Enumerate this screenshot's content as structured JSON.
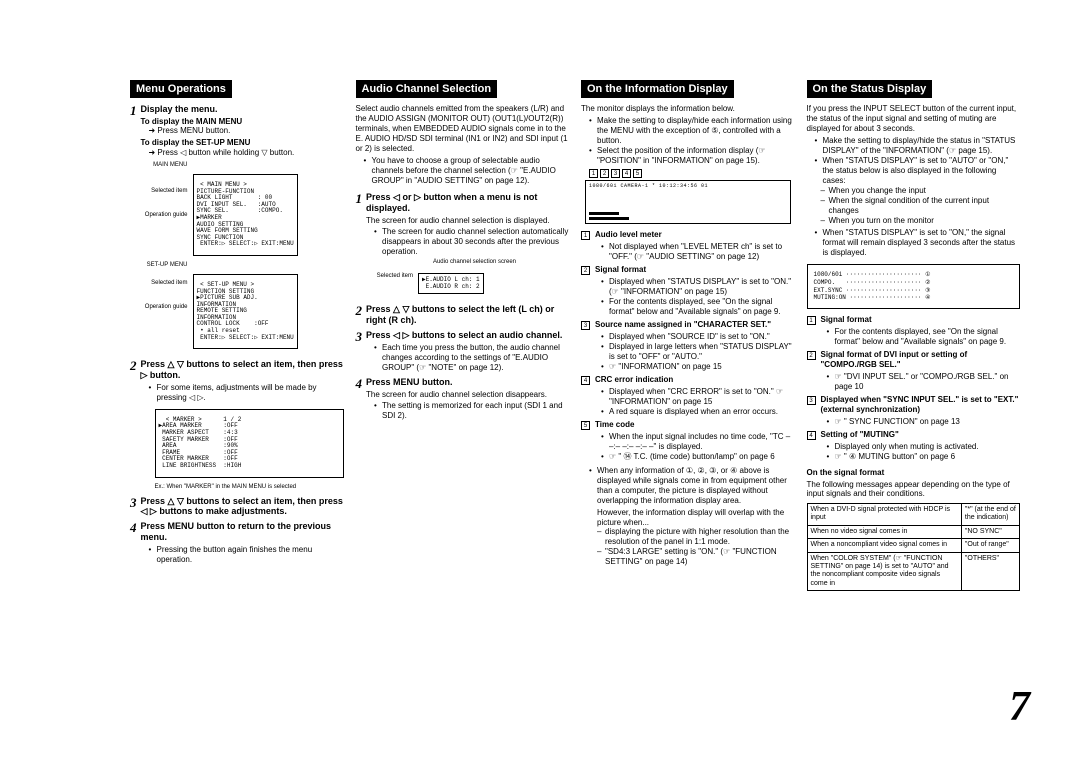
{
  "page_number": "7",
  "col1": {
    "header": "Menu Operations",
    "step1": {
      "title": "Display the menu.",
      "line1": "To display the MAIN MENU",
      "line1b": "➜ Press MENU button.",
      "line2": "To display the SET-UP MENU",
      "line2b": "➜ Press ◁ button while holding ▽ button.",
      "diag_main_label": "MAIN MENU",
      "diag_main": " < MAIN MENU >\nPICTURE-FUNCTION\nBACK LIGHT       : 00\nDVI INPUT SEL.   :AUTO\nSYNC SEL.        :COMPO.\n▶MARKER\nAUDIO SETTING\nWAVE FORM SETTING\nSYNC FUNCTION\n ENTER:▷ SELECT:▷ EXIT:MENU",
      "diag_setup_label": "SET-UP MENU",
      "diag_setup": " < SET-UP MENU >\nFUNCTION SETTING\n▶PICTURE SUB ADJ.\nINFORMATION\nREMOTE SETTING\nINFORMATION\nCONTROL LOCK    :OFF\n • all reset\n ENTER:▷ SELECT:▷ EXIT:MENU",
      "sel_label": "Selected item",
      "op_label": "Operation guide"
    },
    "step2": {
      "title": "Press △ ▽ buttons to select an item, then press ▷ button.",
      "bullet": "For some items, adjustments will be made by pressing ◁ ▷.",
      "diag": "  < MARKER >      1 / 2\n▶AREA MARKER      :OFF\n MARKER ASPECT    :4:3\n SAFETY MARKER    :OFF\n AREA             :90%\n FRAME            :OFF\n CENTER MARKER    :OFF\n LINE BRIGHTNESS  :HIGH",
      "caption": "Ex.: When \"MARKER\" in the MAIN MENU is selected"
    },
    "step3": {
      "title": "Press △ ▽ buttons to select an item, then press ◁ ▷ buttons to make adjustments."
    },
    "step4": {
      "title": "Press MENU button to return to the previous menu.",
      "bullet": "Pressing the button again finishes the menu operation."
    }
  },
  "col2": {
    "header": "Audio Channel Selection",
    "intro": "Select audio channels emitted from the speakers (L/R) and the AUDIO ASSIGN (MONITOR OUT) (OUT1(L)/OUT2(R)) terminals, when EMBEDDED AUDIO signals come in to the E. AUDIO HD/SD SDI terminal (IN1 or IN2) and SDI input (1 or 2) is selected.",
    "intro_b": "You have to choose a group of selectable audio channels before the channel selection (☞ \"E.AUDIO GROUP\" in \"AUDIO SETTING\" on page 12).",
    "step1": {
      "title": "Press ◁ or ▷ button when a menu is not displayed.",
      "sub": "The screen for audio channel selection is displayed.",
      "bullet": "The screen for audio channel selection automatically disappears in about 30 seconds after the previous operation.",
      "diag_caption": "Audio channel selection screen",
      "diag_label": "Selected item",
      "diag": "▶E.AUDIO L ch: 1\n E.AUDIO R ch: 2"
    },
    "step2": {
      "title": "Press △ ▽ buttons to select the left (L ch) or right (R ch)."
    },
    "step3": {
      "title": "Press ◁ ▷ buttons to select an audio channel.",
      "bullet": "Each time you press the button, the audio channel changes according to the settings of \"E.AUDIO GROUP\" (☞ \"NOTE\" on page 12)."
    },
    "step4": {
      "title": "Press MENU button.",
      "sub": "The screen for audio channel selection disappears.",
      "bullet": "The setting is memorized for each input (SDI 1 and SDI 2)."
    }
  },
  "col3": {
    "header": "On the Information Display",
    "intro": "The monitor displays the information below.",
    "b1": "Make the setting to display/hide each information using the MENU with the exception of ⑤, controlled with a button.",
    "b2": "Select the position of the information display (☞ \"POSITION\" in \"INFORMATION\" on page 15).",
    "diag_top": "① ② ③ ④ ⑤ ↓",
    "diag_line": "1080/60i  CAMERA-1  *  10:12:34:56 01",
    "items": [
      {
        "n": "1",
        "t": "Audio level meter",
        "sub": [
          "Not displayed when \"LEVEL METER ch\" is set to \"OFF.\" (☞ \"AUDIO SETTING\" on page 12)"
        ]
      },
      {
        "n": "2",
        "t": "Signal format",
        "sub": [
          "Displayed when \"STATUS DISPLAY\" is set to \"ON.\" (☞ \"INFORMATION\" on page 15)",
          "For the contents displayed, see \"On the signal format\" below and \"Available signals\" on page 9."
        ]
      },
      {
        "n": "3",
        "t": "Source name assigned in \"CHARACTER SET.\"",
        "sub": [
          "Displayed when \"SOURCE ID\" is set to \"ON.\"",
          "Displayed in large letters when \"STATUS DISPLAY\" is set to \"OFF\" or \"AUTO.\"",
          "☞ \"INFORMATION\" on page 15"
        ]
      },
      {
        "n": "4",
        "t": "CRC error indication",
        "sub": [
          "Displayed when \"CRC ERROR\" is set to \"ON.\" ☞ \"INFORMATION\" on page 15",
          "A red square is displayed when an error occurs."
        ]
      },
      {
        "n": "5",
        "t": "Time code",
        "sub": [
          "When the input signal includes no time code, \"TC – –:– –:– –:– –\" is displayed.",
          "☞ \" ⑭ T.C. (time code) button/lamp\" on page 6"
        ]
      }
    ],
    "tail1": "When any information of ①, ②, ③, or ④ above is displayed while signals come in from equipment other than a computer, the picture is displayed without overlapping the information display area.",
    "tail2": "However, the information display will overlap with the picture when...",
    "tail_d1": "displaying the picture with higher resolution than the resolution of the panel in 1:1 mode.",
    "tail_d2": "\"SD4:3 LARGE\" setting is \"ON.\" (☞ \"FUNCTION SETTING\" on page 14)"
  },
  "col4": {
    "header": "On the Status Display",
    "intro": "If you press the INPUT SELECT button of the current input, the status of the input signal and setting of muting are displayed for about 3 seconds.",
    "b1": "Make the setting to display/hide the status in \"STATUS DISPLAY\" of the \"INFORMATION\" (☞ page 15).",
    "b2": "When \"STATUS DISPLAY\" is set to \"AUTO\" or \"ON,\" the status below is also displayed in the following cases:",
    "d1": "When you change the input",
    "d2": "When the signal condition of the current input changes",
    "d3": "When you turn on the monitor",
    "b3": "When \"STATUS DISPLAY\" is set to \"ON,\" the signal format will remain displayed 3 seconds after the status is displayed.",
    "status_diag": "1080/60i ····················· ①\nCOMPO.   ····················· ②\nEXT.SYNC ····················· ③\nMUTING:ON ···················· ④",
    "items": [
      {
        "n": "1",
        "t": "Signal format",
        "sub": [
          "For the contents displayed, see \"On the signal format\" below and \"Available signals\" on page 9."
        ]
      },
      {
        "n": "2",
        "t": "Signal format of DVI input or setting of \"COMPO./RGB SEL.\"",
        "sub": [
          "☞ \"DVI INPUT SEL.\" or \"COMPO./RGB SEL.\" on page 10"
        ]
      },
      {
        "n": "3",
        "t": "Displayed when \"SYNC INPUT SEL.\" is set to \"EXT.\" (external synchronization)",
        "sub": [
          "☞ \" SYNC FUNCTION\" on page 13"
        ]
      },
      {
        "n": "4",
        "t": "Setting of \"MUTING\"",
        "sub": [
          "Displayed only when muting is activated.",
          "☞ \" ④ MUTING button\" on page 6"
        ]
      }
    ],
    "table_title": "On the signal format",
    "table_intro": "The following messages appear depending on the type of input signals and their conditions.",
    "table": [
      [
        "When a DVI-D signal protected with HDCP is input",
        "\"*\" (at the end of the indication)"
      ],
      [
        "When no video signal comes in",
        "\"NO SYNC\""
      ],
      [
        "When a noncompliant video signal comes in",
        "\"Out of range\""
      ],
      [
        "When \"COLOR SYSTEM\" (☞ \"FUNCTION SETTING\" on page 14) is set to \"AUTO\" and the noncompliant composite video signals come in",
        "\"OTHERS\""
      ]
    ]
  }
}
